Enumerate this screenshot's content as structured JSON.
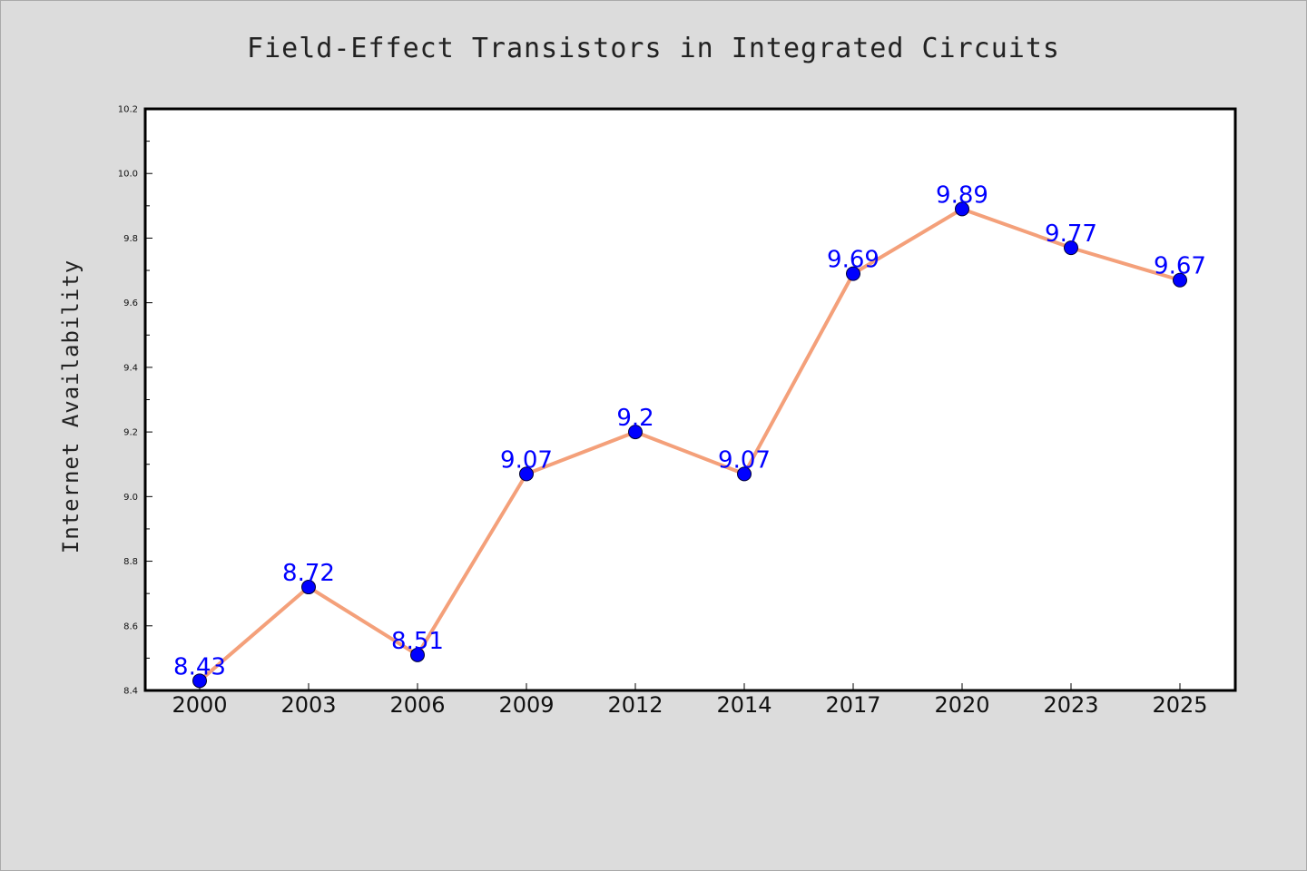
{
  "chart_data": {
    "type": "line",
    "title": "Field-Effect Transistors in Integrated Circuits",
    "xlabel": "",
    "ylabel": "Internet Availability",
    "categories": [
      "2000",
      "2003",
      "2006",
      "2009",
      "2012",
      "2014",
      "2017",
      "2020",
      "2023",
      "2025"
    ],
    "series": [
      {
        "values": [
          8.43,
          8.72,
          8.51,
          9.07,
          9.2,
          9.07,
          9.69,
          9.89,
          9.77,
          9.67
        ],
        "labels": [
          "8.43",
          "8.72",
          "8.51",
          "9.07",
          "9.2",
          "9.07",
          "9.69",
          "9.89",
          "9.77",
          "9.67"
        ]
      }
    ],
    "ylim": [
      8.4,
      10.2
    ],
    "yticks": [
      "8.4",
      "8.6",
      "8.8",
      "9.0",
      "9.2",
      "9.4",
      "9.6",
      "9.8",
      "10.0",
      "10.2"
    ],
    "grid": false,
    "colors": {
      "line": "#f4a07a",
      "marker": "#0000ff",
      "label": "#0000ff",
      "background": "#dcdcdc",
      "plot_background": "#ffffff"
    }
  }
}
